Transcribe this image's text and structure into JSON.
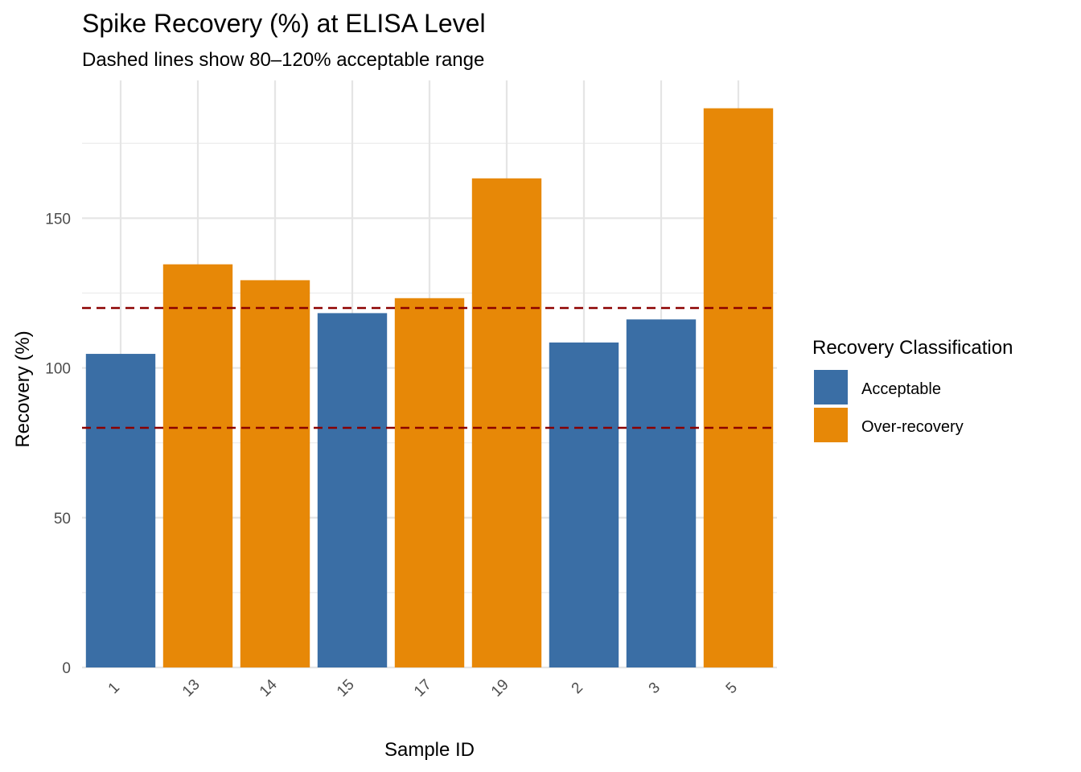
{
  "chart_data": {
    "type": "bar",
    "title": "Spike Recovery (%) at ELISA Level",
    "subtitle": "Dashed lines show 80–120% acceptable range",
    "xlabel": "Sample ID",
    "ylabel": "Recovery (%)",
    "categories": [
      "1",
      "13",
      "14",
      "15",
      "17",
      "19",
      "2",
      "3",
      "5"
    ],
    "values": [
      104.7,
      134.6,
      129.3,
      118.3,
      123.3,
      163.3,
      108.5,
      116.2,
      186.7
    ],
    "classification": [
      "Acceptable",
      "Over-recovery",
      "Over-recovery",
      "Acceptable",
      "Over-recovery",
      "Over-recovery",
      "Acceptable",
      "Acceptable",
      "Over-recovery"
    ],
    "ylim": [
      0,
      196
    ],
    "yticks": [
      0,
      50,
      100,
      150
    ],
    "reference_lines": [
      80,
      120
    ],
    "reference_line_color": "#8b0000",
    "grid": true,
    "legend": {
      "title": "Recovery Classification",
      "position": "right",
      "items": [
        {
          "label": "Acceptable",
          "color": "#3a6ea5"
        },
        {
          "label": "Over-recovery",
          "color": "#e78807"
        }
      ]
    }
  }
}
